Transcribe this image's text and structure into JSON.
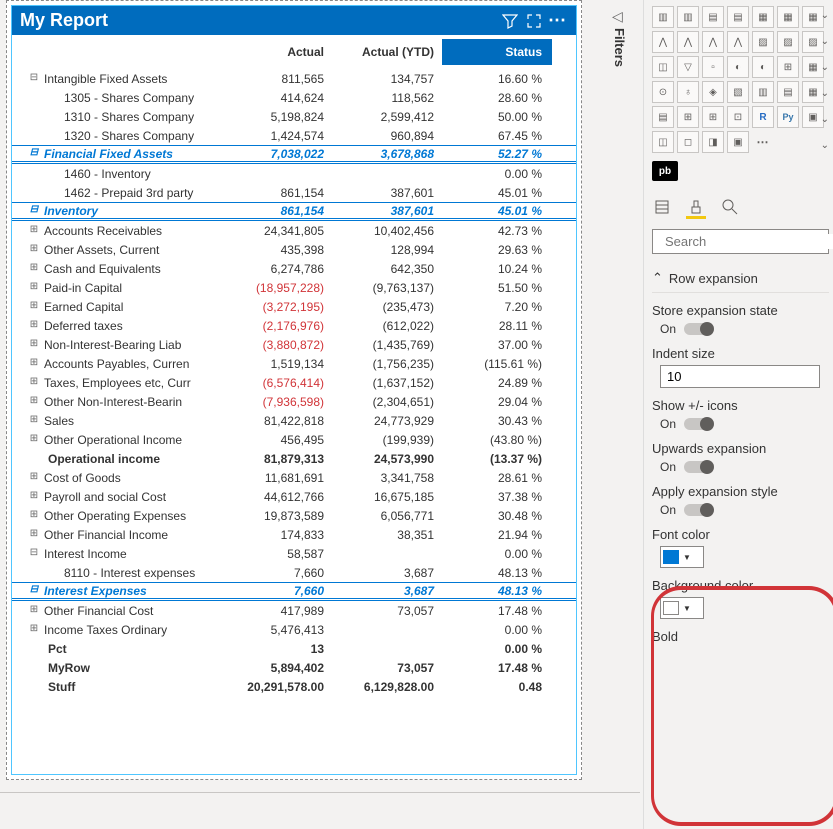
{
  "report": {
    "title": "My Report",
    "columns": {
      "actual": "Actual",
      "actual_ytd": "Actual (YTD)",
      "status": "Status"
    },
    "rows": [
      {
        "label": "Intangible Fixed Assets",
        "c1": "811,565",
        "c2": "134,757",
        "c3": "16.60 %",
        "exp": "−",
        "indent": 1
      },
      {
        "label": "1305 - Shares Company",
        "c1": "414,624",
        "c2": "118,562",
        "c3": "28.60 %",
        "indent": 2
      },
      {
        "label": "1310 - Shares Company",
        "c1": "5,198,824",
        "c2": "2,599,412",
        "c3": "50.00 %",
        "indent": 2
      },
      {
        "label": "1320 - Shares Company",
        "c1": "1,424,574",
        "c2": "960,894",
        "c3": "67.45 %",
        "indent": 2
      },
      {
        "label": "Financial Fixed Assets",
        "c1": "7,038,022",
        "c2": "3,678,868",
        "c3": "52.27 %",
        "exp": "−",
        "style": "subtotal",
        "indent": 1
      },
      {
        "label": "1460 - Inventory",
        "c1": "",
        "c2": "",
        "c3": "0.00 %",
        "indent": 2
      },
      {
        "label": "1462 - Prepaid 3rd party",
        "c1": "861,154",
        "c2": "387,601",
        "c3": "45.01 %",
        "indent": 2
      },
      {
        "label": "Inventory",
        "c1": "861,154",
        "c2": "387,601",
        "c3": "45.01 %",
        "exp": "−",
        "style": "subtotal",
        "indent": 1
      },
      {
        "label": "Accounts Receivables",
        "c1": "24,341,805",
        "c2": "10,402,456",
        "c3": "42.73 %",
        "exp": "+",
        "indent": 1
      },
      {
        "label": "Other Assets, Current",
        "c1": "435,398",
        "c2": "128,994",
        "c3": "29.63 %",
        "exp": "+",
        "indent": 1
      },
      {
        "label": "Cash and Equivalents",
        "c1": "6,274,786",
        "c2": "642,350",
        "c3": "10.24 %",
        "exp": "+",
        "indent": 1
      },
      {
        "label": "Paid-in Capital",
        "c1": "(18,957,228)",
        "c2": "(9,763,137)",
        "c3": "51.50 %",
        "exp": "+",
        "indent": 1,
        "neg1": true,
        "neg2": false
      },
      {
        "label": "Earned Capital",
        "c1": "(3,272,195)",
        "c2": "(235,473)",
        "c3": "7.20 %",
        "exp": "+",
        "indent": 1,
        "neg1": true
      },
      {
        "label": "Deferred taxes",
        "c1": "(2,176,976)",
        "c2": "(612,022)",
        "c3": "28.11 %",
        "exp": "+",
        "indent": 1,
        "neg1": true
      },
      {
        "label": "Non-Interest-Bearing Liab",
        "c1": "(3,880,872)",
        "c2": "(1,435,769)",
        "c3": "37.00 %",
        "exp": "+",
        "indent": 1,
        "neg1": true
      },
      {
        "label": "Accounts Payables, Curren",
        "c1": "1,519,134",
        "c2": "(1,756,235)",
        "c3": "(115.61 %)",
        "exp": "+",
        "indent": 1
      },
      {
        "label": "Taxes, Employees etc, Curr",
        "c1": "(6,576,414)",
        "c2": "(1,637,152)",
        "c3": "24.89 %",
        "exp": "+",
        "indent": 1,
        "neg1": true
      },
      {
        "label": "Other Non-Interest-Bearin",
        "c1": "(7,936,598)",
        "c2": "(2,304,651)",
        "c3": "29.04 %",
        "exp": "+",
        "indent": 1,
        "neg1": true
      },
      {
        "label": "Sales",
        "c1": "81,422,818",
        "c2": "24,773,929",
        "c3": "30.43 %",
        "exp": "+",
        "indent": 1
      },
      {
        "label": "Other Operational Income",
        "c1": "456,495",
        "c2": "(199,939)",
        "c3": "(43.80 %)",
        "exp": "+",
        "indent": 1
      },
      {
        "label": "Operational income",
        "c1": "81,879,313",
        "c2": "24,573,990",
        "c3": "(13.37 %)",
        "style": "bold",
        "indent": 3
      },
      {
        "label": "Cost of Goods",
        "c1": "11,681,691",
        "c2": "3,341,758",
        "c3": "28.61 %",
        "exp": "+",
        "indent": 1
      },
      {
        "label": "Payroll and social Cost",
        "c1": "44,612,766",
        "c2": "16,675,185",
        "c3": "37.38 %",
        "exp": "+",
        "indent": 1
      },
      {
        "label": "Other Operating Expenses",
        "c1": "19,873,589",
        "c2": "6,056,771",
        "c3": "30.48 %",
        "exp": "+",
        "indent": 1
      },
      {
        "label": "Other Financial Income",
        "c1": "174,833",
        "c2": "38,351",
        "c3": "21.94 %",
        "exp": "+",
        "indent": 1
      },
      {
        "label": "Interest Income",
        "c1": "58,587",
        "c2": "",
        "c3": "0.00 %",
        "exp": "−",
        "indent": 1
      },
      {
        "label": "8110 - Interest expenses",
        "c1": "7,660",
        "c2": "3,687",
        "c3": "48.13 %",
        "indent": 2
      },
      {
        "label": "Interest Expenses",
        "c1": "7,660",
        "c2": "3,687",
        "c3": "48.13 %",
        "exp": "−",
        "style": "subtotal",
        "indent": 1
      },
      {
        "label": "Other Financial Cost",
        "c1": "417,989",
        "c2": "73,057",
        "c3": "17.48 %",
        "exp": "+",
        "indent": 1
      },
      {
        "label": "Income Taxes Ordinary",
        "c1": "5,476,413",
        "c2": "",
        "c3": "0.00 %",
        "exp": "+",
        "indent": 1
      },
      {
        "label": "Pct",
        "c1": "13",
        "c2": "",
        "c3": "0.00 %",
        "style": "bold",
        "indent": 3
      },
      {
        "label": "MyRow",
        "c1": "5,894,402",
        "c2": "73,057",
        "c3": "17.48 %",
        "style": "bold",
        "indent": 3
      },
      {
        "label": "Stuff",
        "c1": "20,291,578.00",
        "c2": "6,129,828.00",
        "c3": "0.48",
        "style": "bold",
        "indent": 3
      }
    ]
  },
  "filters_label": "Filters",
  "pb_label": "pb",
  "search": {
    "placeholder": "Search"
  },
  "section": {
    "title": "Row expansion"
  },
  "props": {
    "store_state": {
      "label": "Store expansion state",
      "on": "On"
    },
    "indent": {
      "label": "Indent size",
      "value": "10"
    },
    "show_icons": {
      "label": "Show +/- icons",
      "on": "On"
    },
    "upwards": {
      "label": "Upwards expansion",
      "on": "On"
    },
    "apply_style": {
      "label": "Apply expansion style",
      "on": "On"
    },
    "font_color": {
      "label": "Font color",
      "value": "#0078d4"
    },
    "bg_color": {
      "label": "Background color",
      "value": "#ffffff"
    },
    "bold": {
      "label": "Bold"
    }
  },
  "colors": {
    "accent": "#006cbe",
    "link": "#0078d4",
    "neg": "#d13438",
    "yellow": "#f2c811",
    "annot": "#d13438"
  }
}
